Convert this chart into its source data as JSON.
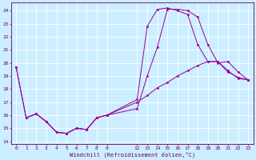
{
  "xlabel": "Windchill (Refroidissement éolien,°C)",
  "bg_color": "#cceeff",
  "grid_color": "#ffffff",
  "line_color": "#990099",
  "xlim": [
    -0.5,
    23.5
  ],
  "ylim": [
    13.8,
    24.6
  ],
  "yticks": [
    14,
    15,
    16,
    17,
    18,
    19,
    20,
    21,
    22,
    23,
    24
  ],
  "xticks": [
    0,
    1,
    2,
    3,
    4,
    5,
    6,
    7,
    8,
    9,
    12,
    13,
    14,
    15,
    16,
    17,
    18,
    19,
    20,
    21,
    22,
    23
  ],
  "curve1_x": [
    0,
    1,
    2,
    3,
    4,
    5,
    6,
    7,
    8,
    9,
    12,
    13,
    14,
    15,
    16,
    17,
    18,
    19,
    20,
    21,
    22,
    23
  ],
  "curve1_y": [
    19.7,
    15.8,
    16.1,
    15.5,
    14.7,
    14.6,
    15.0,
    14.9,
    15.8,
    16.0,
    17.0,
    17.5,
    18.1,
    18.5,
    19.0,
    19.4,
    19.8,
    20.1,
    20.1,
    19.4,
    18.8,
    18.7
  ],
  "curve2_x": [
    0,
    1,
    2,
    3,
    4,
    5,
    6,
    7,
    8,
    9,
    12,
    13,
    14,
    15,
    16,
    17,
    18,
    19,
    20,
    21,
    22,
    23
  ],
  "curve2_y": [
    19.7,
    15.8,
    16.1,
    15.5,
    14.7,
    14.6,
    15.0,
    14.9,
    15.8,
    16.0,
    16.5,
    19.0,
    21.2,
    24.1,
    24.1,
    24.0,
    23.5,
    21.4,
    20.0,
    20.1,
    19.3,
    18.7
  ],
  "curve3_x": [
    1,
    2,
    3,
    4,
    5,
    6,
    7,
    8,
    9,
    12,
    13,
    14,
    15,
    16,
    17,
    18,
    19,
    20,
    21,
    22,
    23
  ],
  "curve3_y": [
    15.8,
    16.1,
    15.5,
    14.7,
    14.6,
    15.0,
    14.9,
    15.8,
    16.0,
    17.2,
    22.8,
    24.1,
    24.2,
    24.0,
    23.7,
    21.4,
    20.1,
    20.1,
    19.3,
    18.9,
    18.7
  ]
}
